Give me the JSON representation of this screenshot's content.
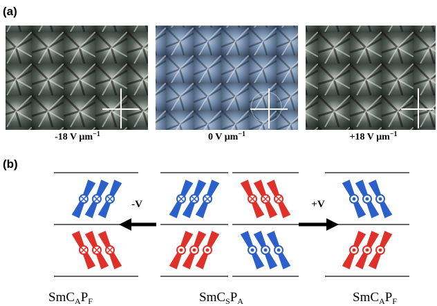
{
  "panel_a": {
    "label": "(a)",
    "captions": [
      {
        "text": "-18 V µm",
        "sup": "−1"
      },
      {
        "text": "0 V µm",
        "sup": "−1"
      },
      {
        "text": "+18 V µm",
        "sup": "−1"
      }
    ]
  },
  "panel_b": {
    "label": "(b)",
    "left_arrow": "-V",
    "right_arrow": "+V",
    "phases": [
      {
        "main": "SmC",
        "sub1": "A",
        "p": "P",
        "sub2": "F"
      },
      {
        "main": "SmC",
        "sub1": "S",
        "p": "P",
        "sub2": "A"
      },
      {
        "main": "SmC",
        "sub1": "A",
        "p": "P",
        "sub2": "F"
      }
    ]
  }
}
